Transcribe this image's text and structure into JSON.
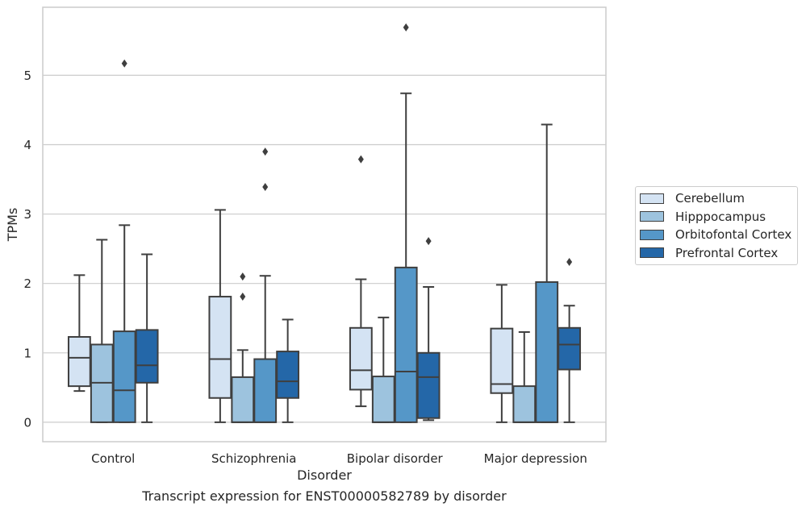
{
  "chart_data": {
    "type": "box",
    "title": "",
    "caption": "Transcript expression for ENST00000582789 by disorder",
    "xlabel": "Disorder",
    "ylabel": "TPMs",
    "ylim": [
      -0.28,
      5.98
    ],
    "yticks": [
      "0",
      "1",
      "2",
      "3",
      "4",
      "5"
    ],
    "grid": "horizontal",
    "legend_position": "right",
    "categories": [
      "Control",
      "Schizophrenia",
      "Bipolar disorder",
      "Major depression"
    ],
    "series": [
      {
        "name": "Cerebellum",
        "color": "#d4e3f3",
        "boxes": [
          {
            "whisker_low": 0.45,
            "q1": 0.52,
            "median": 0.93,
            "q3": 1.23,
            "whisker_high": 2.12,
            "outliers": []
          },
          {
            "whisker_low": 0.0,
            "q1": 0.35,
            "median": 0.91,
            "q3": 1.81,
            "whisker_high": 3.06,
            "outliers": []
          },
          {
            "whisker_low": 0.23,
            "q1": 0.47,
            "median": 0.75,
            "q3": 1.36,
            "whisker_high": 2.06,
            "outliers": [
              3.79
            ]
          },
          {
            "whisker_low": 0.0,
            "q1": 0.42,
            "median": 0.55,
            "q3": 1.35,
            "whisker_high": 1.98,
            "outliers": []
          }
        ]
      },
      {
        "name": "Hipppocampus",
        "color": "#9dc3de",
        "boxes": [
          {
            "whisker_low": 0.0,
            "q1": 0.0,
            "median": 0.57,
            "q3": 1.12,
            "whisker_high": 2.63,
            "outliers": []
          },
          {
            "whisker_low": 0.0,
            "q1": 0.0,
            "median": 0.0,
            "q3": 0.65,
            "whisker_high": 1.04,
            "outliers": [
              1.81,
              2.1
            ]
          },
          {
            "whisker_low": 0.0,
            "q1": 0.0,
            "median": 0.0,
            "q3": 0.66,
            "whisker_high": 1.51,
            "outliers": []
          },
          {
            "whisker_low": 0.0,
            "q1": 0.0,
            "median": 0.0,
            "q3": 0.52,
            "whisker_high": 1.3,
            "outliers": []
          }
        ]
      },
      {
        "name": "Orbitofontal Cortex",
        "color": "#5597c8",
        "boxes": [
          {
            "whisker_low": 0.0,
            "q1": 0.0,
            "median": 0.46,
            "q3": 1.31,
            "whisker_high": 2.84,
            "outliers": [
              5.17
            ]
          },
          {
            "whisker_low": 0.0,
            "q1": 0.0,
            "median": 0.0,
            "q3": 0.91,
            "whisker_high": 2.11,
            "outliers": [
              3.39,
              3.9
            ]
          },
          {
            "whisker_low": 0.0,
            "q1": 0.0,
            "median": 0.73,
            "q3": 2.23,
            "whisker_high": 4.74,
            "outliers": [
              5.69
            ]
          },
          {
            "whisker_low": 0.0,
            "q1": 0.0,
            "median": 0.0,
            "q3": 2.02,
            "whisker_high": 4.29,
            "outliers": []
          }
        ]
      },
      {
        "name": "Prefrontal Cortex",
        "color": "#2467a8",
        "boxes": [
          {
            "whisker_low": 0.0,
            "q1": 0.57,
            "median": 0.82,
            "q3": 1.33,
            "whisker_high": 2.42,
            "outliers": []
          },
          {
            "whisker_low": 0.0,
            "q1": 0.35,
            "median": 0.59,
            "q3": 1.02,
            "whisker_high": 1.48,
            "outliers": []
          },
          {
            "whisker_low": 0.03,
            "q1": 0.06,
            "median": 0.65,
            "q3": 1.0,
            "whisker_high": 1.95,
            "outliers": [
              2.61
            ]
          },
          {
            "whisker_low": 0.0,
            "q1": 0.76,
            "median": 1.12,
            "q3": 1.36,
            "whisker_high": 1.68,
            "outliers": [
              2.31
            ]
          }
        ]
      }
    ]
  }
}
